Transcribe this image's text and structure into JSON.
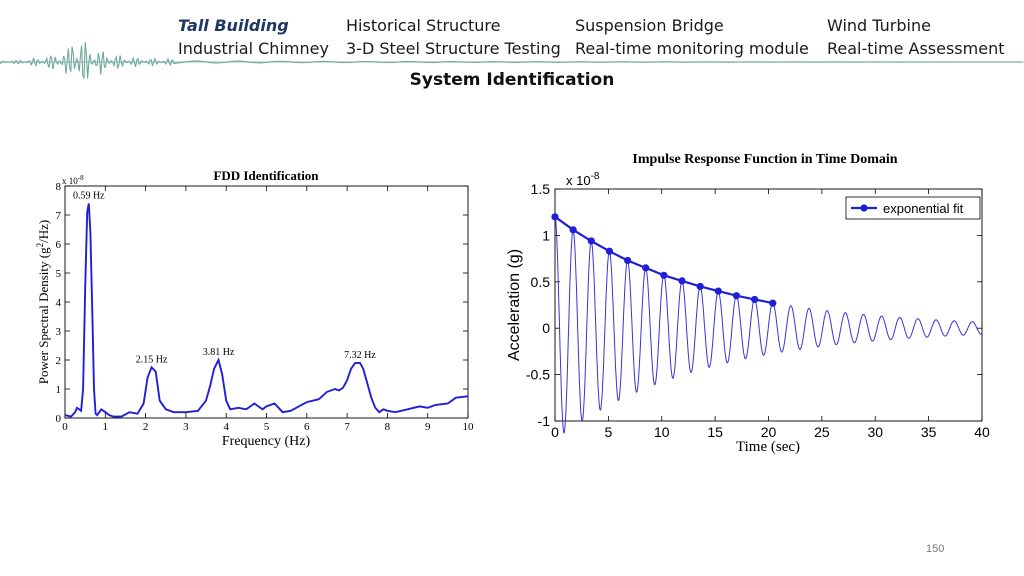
{
  "nav": {
    "items": [
      {
        "label": "Tall Building",
        "active": true
      },
      {
        "label": "Historical Structure"
      },
      {
        "label": "Suspension Bridge"
      },
      {
        "label": "Wind Turbine"
      },
      {
        "label": "Industrial Chimney"
      },
      {
        "label": "3-D Steel Structure Testing"
      },
      {
        "label": "Real-time monitoring module"
      },
      {
        "label": "Real-time Assessment"
      }
    ]
  },
  "section_title": "System Identification",
  "page_number": "150",
  "colors": {
    "series": "#1f1fd6",
    "active_nav": "#1f3864",
    "banner_wave": "#7fb3a8"
  },
  "chart_data": [
    {
      "type": "line",
      "title": "FDD Identification",
      "xlabel": "Frequency (Hz)",
      "ylabel_prefix": "Power Spectral Density (g",
      "ylabel_sup": "2",
      "ylabel_suffix": "/Hz)",
      "y_multiplier_text": "x 10",
      "y_multiplier_exp": "-8",
      "xlim": [
        0,
        10
      ],
      "ylim": [
        0,
        8
      ],
      "xticks": [
        0,
        1,
        2,
        3,
        4,
        5,
        6,
        7,
        8,
        9,
        10
      ],
      "yticks": [
        0,
        1,
        2,
        3,
        4,
        5,
        6,
        7,
        8
      ],
      "grid": false,
      "series": [
        {
          "x": [
            0,
            0.15,
            0.25,
            0.3,
            0.35,
            0.4,
            0.45,
            0.5,
            0.55,
            0.59,
            0.63,
            0.68,
            0.72,
            0.76,
            0.8,
            0.9,
            1.0,
            1.1,
            1.2,
            1.4,
            1.6,
            1.8,
            1.95,
            2.05,
            2.15,
            2.25,
            2.35,
            2.5,
            2.7,
            3.0,
            3.3,
            3.5,
            3.6,
            3.7,
            3.81,
            3.9,
            4.0,
            4.1,
            4.3,
            4.5,
            4.7,
            4.8,
            4.9,
            5.0,
            5.2,
            5.3,
            5.4,
            5.6,
            5.8,
            6.0,
            6.3,
            6.5,
            6.7,
            6.8,
            6.9,
            7.0,
            7.1,
            7.2,
            7.32,
            7.4,
            7.5,
            7.6,
            7.7,
            7.8,
            7.9,
            8.0,
            8.2,
            8.5,
            8.8,
            9.0,
            9.2,
            9.5,
            9.7,
            10.0
          ],
          "values": [
            0.1,
            0.05,
            0.2,
            0.35,
            0.3,
            0.25,
            1.0,
            4.5,
            7.1,
            7.4,
            6.4,
            3.5,
            1.0,
            0.15,
            0.1,
            0.3,
            0.2,
            0.1,
            0.05,
            0.05,
            0.2,
            0.15,
            0.5,
            1.4,
            1.75,
            1.6,
            0.6,
            0.3,
            0.2,
            0.2,
            0.25,
            0.6,
            1.1,
            1.7,
            2.0,
            1.5,
            0.6,
            0.3,
            0.35,
            0.3,
            0.5,
            0.4,
            0.3,
            0.4,
            0.5,
            0.35,
            0.2,
            0.25,
            0.4,
            0.55,
            0.65,
            0.9,
            1.0,
            0.95,
            1.05,
            1.3,
            1.7,
            1.9,
            1.9,
            1.7,
            1.2,
            0.7,
            0.35,
            0.2,
            0.3,
            0.25,
            0.2,
            0.3,
            0.4,
            0.35,
            0.45,
            0.5,
            0.7,
            0.75
          ]
        }
      ],
      "annotations": [
        {
          "text": "0.59 Hz",
          "x": 0.59,
          "y": 7.4
        },
        {
          "text": "2.15 Hz",
          "x": 2.15,
          "y": 1.75
        },
        {
          "text": "3.81 Hz",
          "x": 3.81,
          "y": 2.0
        },
        {
          "text": "7.32 Hz",
          "x": 7.32,
          "y": 1.9
        }
      ]
    },
    {
      "type": "line",
      "title": "Impulse Response Function in Time Domain",
      "xlabel": "Time (sec)",
      "ylabel": "Acceleration (g)",
      "y_multiplier_text": "x 10",
      "y_multiplier_exp": "-8",
      "xlim": [
        0,
        40
      ],
      "ylim": [
        -1,
        1.5
      ],
      "xticks": [
        0,
        5,
        10,
        15,
        20,
        25,
        30,
        35,
        40
      ],
      "yticks": [
        -1,
        -0.5,
        0,
        0.5,
        1,
        1.5
      ],
      "ytick_labels": [
        "-1",
        "-0.5",
        "0",
        "0.5",
        "1",
        "1.5"
      ],
      "grid": false,
      "legend": {
        "position": "top-right"
      },
      "response": {
        "amplitude": 1.2,
        "decay_per_sec": 0.0725,
        "period_sec": 1.7,
        "t_end": 40
      },
      "series": [
        {
          "name": "exponential fit",
          "x": [
            0,
            1.7,
            3.4,
            5.1,
            6.8,
            8.5,
            10.2,
            11.9,
            13.6,
            15.3,
            17.0,
            18.7,
            20.4
          ],
          "values": [
            1.2,
            1.06,
            0.94,
            0.83,
            0.73,
            0.65,
            0.57,
            0.51,
            0.45,
            0.4,
            0.35,
            0.31,
            0.27
          ]
        }
      ]
    }
  ]
}
